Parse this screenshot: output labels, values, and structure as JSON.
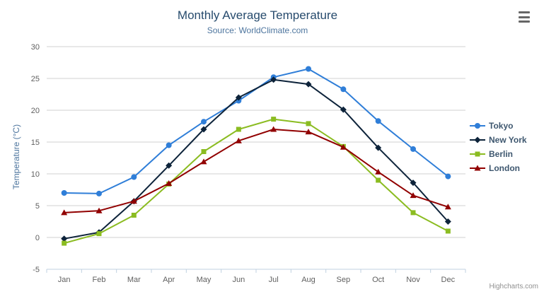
{
  "title": "Monthly Average Temperature",
  "subtitle": "Source: WorldClimate.com",
  "y_axis_title": "Temperature (°C)",
  "credits": "Highcharts.com",
  "colors": {
    "title": "#274b6d",
    "subtitle": "#4d759e",
    "grid": "#d0d0d0",
    "axis_line": "#c0d0e0",
    "label": "#606060",
    "legend_text": "#3e576f",
    "credits": "#909090"
  },
  "chart_data": {
    "type": "line",
    "title": "Monthly Average Temperature",
    "subtitle": "Source: WorldClimate.com",
    "ylabel": "Temperature (°C)",
    "xlabel": "",
    "categories": [
      "Jan",
      "Feb",
      "Mar",
      "Apr",
      "May",
      "Jun",
      "Jul",
      "Aug",
      "Sep",
      "Oct",
      "Nov",
      "Dec"
    ],
    "ylim": [
      -5,
      30
    ],
    "y_tick_interval": 5,
    "grid": true,
    "legend_position": "right",
    "series": [
      {
        "name": "Tokyo",
        "color": "#2f7ed8",
        "marker": "circle",
        "values": [
          7.0,
          6.9,
          9.5,
          14.5,
          18.2,
          21.5,
          25.2,
          26.5,
          23.3,
          18.3,
          13.9,
          9.6
        ]
      },
      {
        "name": "New York",
        "color": "#0d233a",
        "marker": "diamond",
        "values": [
          -0.2,
          0.8,
          5.7,
          11.3,
          17.0,
          22.0,
          24.8,
          24.1,
          20.1,
          14.1,
          8.6,
          2.5
        ]
      },
      {
        "name": "Berlin",
        "color": "#8bbc21",
        "marker": "square",
        "values": [
          -0.9,
          0.6,
          3.5,
          8.4,
          13.5,
          17.0,
          18.6,
          17.9,
          14.3,
          9.0,
          3.9,
          1.0
        ]
      },
      {
        "name": "London",
        "color": "#910000",
        "marker": "triangle",
        "values": [
          3.9,
          4.2,
          5.7,
          8.5,
          11.9,
          15.2,
          17.0,
          16.6,
          14.2,
          10.3,
          6.6,
          4.8
        ]
      }
    ]
  }
}
